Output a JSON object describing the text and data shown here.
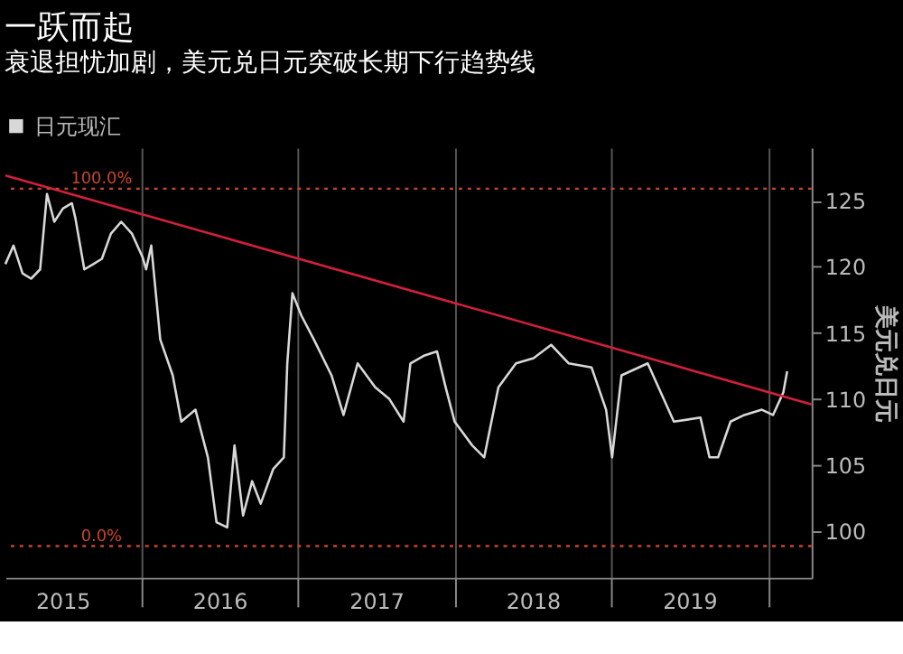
{
  "chart_data": {
    "type": "line",
    "title": "一跃而起",
    "subtitle": "衰退担忧加剧，美元兑日元突破长期下行趋势线",
    "ylabel": "美元兑日元",
    "xlim": [
      "2015-02-19",
      "2020-04-12"
    ],
    "xticks": [
      {
        "value": "2015-07-02",
        "label": "2015"
      },
      {
        "value": "2016-01-01",
        "label": null
      },
      {
        "value": "2016-07-02",
        "label": "2016"
      },
      {
        "value": "2017-01-01",
        "label": null
      },
      {
        "value": "2017-07-02",
        "label": "2017"
      },
      {
        "value": "2018-01-01",
        "label": null
      },
      {
        "value": "2018-07-02",
        "label": "2018"
      },
      {
        "value": "2019-01-01",
        "label": null
      },
      {
        "value": "2019-07-02",
        "label": "2019"
      },
      {
        "value": "2020-01-01",
        "label": null
      }
    ],
    "ylim": [
      96.5,
      129
    ],
    "yticks": [
      100,
      105,
      110,
      115,
      120,
      125
    ],
    "grid": "x",
    "legend": "top left",
    "series": [
      {
        "name": "日元现汇",
        "color": "#d8d8d8",
        "x": [
          "2015-02-19",
          "2015-03-10",
          "2015-03-31",
          "2015-04-20",
          "2015-05-11",
          "2015-05-27",
          "2015-06-13",
          "2015-07-03",
          "2015-07-24",
          "2015-08-01",
          "2015-08-22",
          "2015-09-12",
          "2015-10-02",
          "2015-10-23",
          "2015-11-16",
          "2015-12-11",
          "2016-01-05",
          "2016-01-13",
          "2016-01-25",
          "2016-02-15",
          "2016-03-15",
          "2016-04-04",
          "2016-05-07",
          "2016-06-05",
          "2016-06-25",
          "2016-07-20",
          "2016-08-06",
          "2016-08-26",
          "2016-09-16",
          "2016-10-06",
          "2016-11-04",
          "2016-11-29",
          "2016-12-07",
          "2016-12-19",
          "2017-01-09",
          "2017-02-07",
          "2017-03-20",
          "2017-04-17",
          "2017-05-20",
          "2017-06-30",
          "2017-08-02",
          "2017-09-04",
          "2017-09-20",
          "2017-10-23",
          "2017-11-21",
          "2017-12-11",
          "2018-01-01",
          "2018-02-11",
          "2018-03-11",
          "2018-04-13",
          "2018-05-24",
          "2018-07-04",
          "2018-08-14",
          "2018-09-24",
          "2018-11-16",
          "2018-12-20",
          "2019-01-03",
          "2019-01-25",
          "2019-03-27",
          "2019-05-27",
          "2019-07-28",
          "2019-08-18",
          "2019-09-07",
          "2019-10-06",
          "2019-11-07",
          "2019-12-18",
          "2020-01-13",
          "2020-02-06",
          "2020-02-15"
        ],
        "values": [
          120.2,
          121.6,
          119.5,
          119.1,
          119.8,
          125.5,
          123.4,
          124.4,
          124.8,
          123.7,
          119.8,
          120.2,
          120.6,
          122.5,
          123.4,
          122.5,
          120.7,
          119.8,
          121.6,
          114.5,
          111.8,
          108.3,
          109.2,
          105.6,
          100.7,
          100.3,
          106.5,
          101.2,
          103.8,
          102.1,
          104.7,
          105.6,
          112.7,
          118.0,
          116.3,
          114.5,
          111.8,
          108.8,
          112.7,
          110.9,
          110.0,
          108.3,
          112.7,
          113.3,
          113.6,
          110.9,
          108.3,
          106.5,
          105.6,
          110.9,
          112.7,
          113.1,
          114.1,
          112.7,
          112.4,
          109.2,
          105.6,
          111.8,
          112.7,
          108.3,
          108.6,
          105.6,
          105.6,
          108.3,
          108.8,
          109.2,
          108.8,
          110.5,
          112.1
        ]
      },
      {
        "color": "#d21f3c",
        "x": [
          "2015-02-19",
          "2020-04-12"
        ],
        "values": [
          126.9,
          109.6
        ]
      }
    ],
    "ref_lines": [
      {
        "axis": "y",
        "value": 125.9,
        "color": "#c8462a",
        "line_style": "dotted"
      },
      {
        "axis": "y",
        "value": 98.9,
        "color": "#c8462a",
        "line_style": "dotted"
      }
    ],
    "annotations": [
      {
        "text": "100.0%",
        "x": "2015-10-01",
        "y": 125.9
      },
      {
        "text": "0.0%",
        "x": "2015-10-01",
        "y": 98.9
      }
    ]
  }
}
